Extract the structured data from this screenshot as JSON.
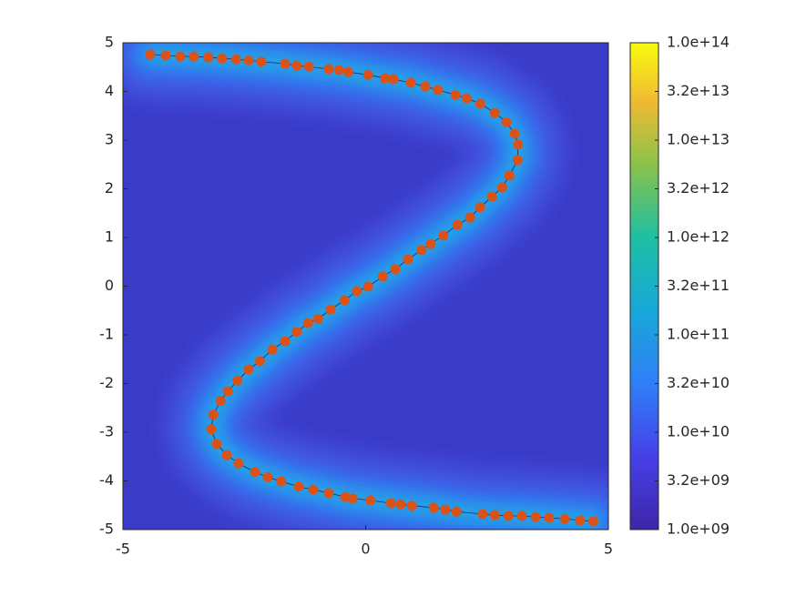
{
  "chart_data": {
    "type": "scatter",
    "x": [
      -4.44,
      -4.12,
      -3.82,
      -3.54,
      -3.24,
      -2.96,
      -2.67,
      -2.41,
      -2.15,
      -1.66,
      -1.42,
      -1.17,
      -0.76,
      -0.55,
      -0.36,
      0.05,
      0.4,
      0.57,
      0.93,
      1.23,
      1.49,
      1.85,
      2.08,
      2.36,
      2.66,
      2.9,
      3.07,
      3.14,
      3.13,
      2.96,
      2.81,
      2.6,
      2.36,
      2.15,
      1.89,
      1.6,
      1.34,
      1.15,
      0.87,
      0.61,
      0.35,
      0.05,
      -0.18,
      -0.44,
      -0.72,
      -0.98,
      -1.19,
      -1.42,
      -1.66,
      -1.92,
      -2.18,
      -2.41,
      -2.64,
      -2.84,
      -2.99,
      -3.14,
      -3.18,
      -3.07,
      -2.86,
      -2.62,
      -2.28,
      -2.02,
      -1.74,
      -1.38,
      -1.08,
      -0.76,
      -0.42,
      -0.27,
      0.1,
      0.52,
      0.72,
      0.95,
      1.4,
      1.64,
      1.87,
      2.41,
      2.66,
      2.94,
      3.22,
      3.5,
      3.78,
      4.1,
      4.42,
      4.69
    ],
    "values": [
      4.76,
      4.74,
      4.72,
      4.72,
      4.7,
      4.68,
      4.66,
      4.64,
      4.61,
      4.57,
      4.53,
      4.51,
      4.46,
      4.44,
      4.4,
      4.34,
      4.27,
      4.25,
      4.18,
      4.1,
      4.03,
      3.93,
      3.86,
      3.75,
      3.56,
      3.37,
      3.13,
      2.91,
      2.59,
      2.27,
      2.03,
      1.84,
      1.62,
      1.41,
      1.26,
      1.04,
      0.87,
      0.74,
      0.55,
      0.35,
      0.2,
      -0.01,
      -0.1,
      -0.29,
      -0.48,
      -0.67,
      -0.76,
      -0.94,
      -1.13,
      -1.3,
      -1.54,
      -1.71,
      -1.94,
      -2.16,
      -2.36,
      -2.64,
      -2.94,
      -3.24,
      -3.47,
      -3.64,
      -3.82,
      -3.92,
      -4.01,
      -4.12,
      -4.18,
      -4.25,
      -4.33,
      -4.36,
      -4.4,
      -4.46,
      -4.48,
      -4.51,
      -4.55,
      -4.59,
      -4.63,
      -4.68,
      -4.7,
      -4.72,
      -4.72,
      -4.74,
      -4.76,
      -4.78,
      -4.81,
      -4.83
    ],
    "color": "#d95319",
    "xlim": [
      -5,
      5
    ],
    "xticks": [
      -5,
      0,
      5
    ],
    "ylim": [
      -5,
      5
    ],
    "yticks": [
      -5,
      -4,
      -3,
      -2,
      -1,
      0,
      1,
      2,
      3,
      4,
      5
    ],
    "colorbar": {
      "scale": "log",
      "lim": [
        1000000000.0,
        100000000000000.0
      ],
      "ticks": [
        {
          "value": 1000000000.0,
          "label": "1.0e+09"
        },
        {
          "value": 3162277660,
          "label": "3.2e+09"
        },
        {
          "value": 10000000000.0,
          "label": "1.0e+10"
        },
        {
          "value": 31622776602,
          "label": "3.2e+10"
        },
        {
          "value": 100000000000.0,
          "label": "1.0e+11"
        },
        {
          "value": 316227766017,
          "label": "3.2e+11"
        },
        {
          "value": 1000000000000.0,
          "label": "1.0e+12"
        },
        {
          "value": 3162277660168,
          "label": "3.2e+12"
        },
        {
          "value": 10000000000000.0,
          "label": "1.0e+13"
        },
        {
          "value": 31622776601684,
          "label": "3.2e+13"
        },
        {
          "value": 100000000000000.0,
          "label": "1.0e+14"
        }
      ]
    }
  }
}
